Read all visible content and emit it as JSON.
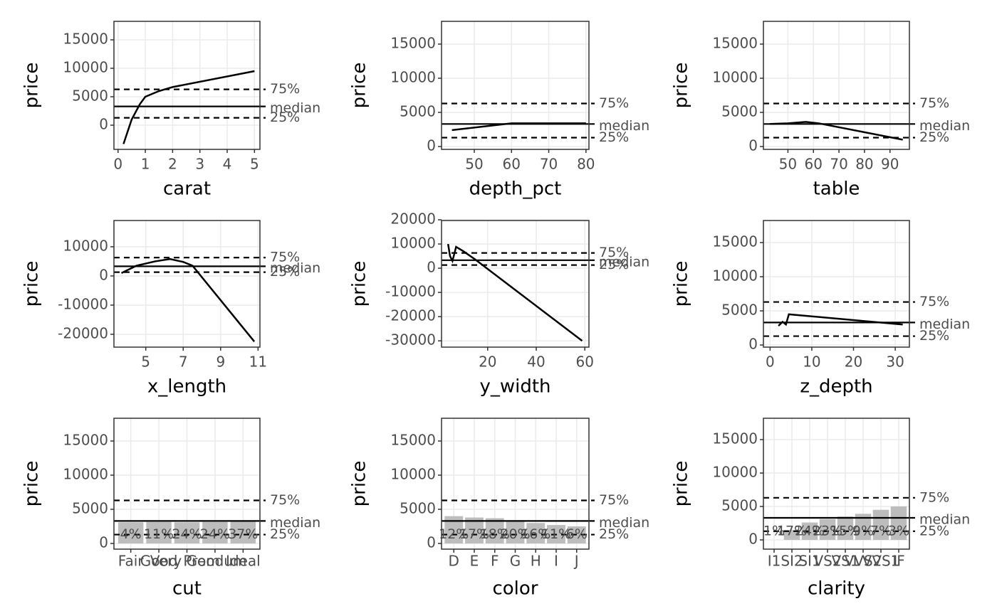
{
  "chart_data": [
    {
      "type": "line",
      "xlabel": "carat",
      "ylabel": "price",
      "color": "#000000",
      "x": [
        0.2,
        0.5,
        0.8,
        1,
        1.5,
        2,
        5
      ],
      "values": [
        -3300,
        1000,
        3700,
        5000,
        6000,
        6700,
        9500
      ],
      "xlim": [
        -0.15,
        5.2
      ],
      "xticks": [
        0,
        1,
        2,
        3,
        4,
        5
      ],
      "ylim": [
        -4250,
        18250
      ],
      "yticks": [
        0,
        5000,
        10000,
        15000
      ],
      "grid": true,
      "reference_lines": [
        {
          "label": "75%",
          "value": 6300
        },
        {
          "label": "median",
          "value": 3300
        },
        {
          "label": "25%",
          "value": 1300
        }
      ]
    },
    {
      "type": "line",
      "xlabel": "depth_pct",
      "ylabel": "price",
      "color": "#000000",
      "x": [
        44,
        60,
        80
      ],
      "values": [
        2400,
        3400,
        3400
      ],
      "xlim": [
        41.2,
        80.8
      ],
      "xticks": [
        50,
        60,
        70,
        80
      ],
      "ylim": [
        -420,
        18330
      ],
      "yticks": [
        0,
        5000,
        10000,
        15000
      ],
      "grid": true,
      "reference_lines": [
        {
          "label": "75%",
          "value": 6300
        },
        {
          "label": "median",
          "value": 3300
        },
        {
          "label": "25%",
          "value": 1300
        }
      ]
    },
    {
      "type": "line",
      "xlabel": "table",
      "ylabel": "price",
      "color": "#000000",
      "x": [
        43,
        50,
        57,
        62,
        95
      ],
      "values": [
        3300,
        3400,
        3600,
        3400,
        1000
      ],
      "xlim": [
        40.4,
        97.6
      ],
      "xticks": [
        50,
        60,
        70,
        80,
        90
      ],
      "ylim": [
        -420,
        18330
      ],
      "yticks": [
        0,
        5000,
        10000,
        15000
      ],
      "grid": true,
      "reference_lines": [
        {
          "label": "75%",
          "value": 6300
        },
        {
          "label": "median",
          "value": 3300
        },
        {
          "label": "25%",
          "value": 1300
        }
      ]
    },
    {
      "type": "line",
      "xlabel": "x_length",
      "ylabel": "price",
      "color": "#000000",
      "x": [
        3.7,
        4.5,
        5.5,
        6.3,
        7,
        7.5,
        10.8
      ],
      "values": [
        1000,
        3500,
        5000,
        5800,
        4800,
        3500,
        -22500
      ],
      "xlim": [
        3.3,
        11.1
      ],
      "xticks": [
        5,
        7,
        9,
        11
      ],
      "ylim": [
        -24400,
        19000
      ],
      "yticks": [
        -20000,
        -10000,
        0,
        10000
      ],
      "grid": true,
      "reference_lines": [
        {
          "label": "75%",
          "value": 6300
        },
        {
          "label": "median",
          "value": 3300
        },
        {
          "label": "25%",
          "value": 1300
        }
      ]
    },
    {
      "type": "line",
      "xlabel": "y_width",
      "ylabel": "price",
      "color": "#000000",
      "x": [
        3.7,
        4.5,
        5.5,
        7,
        10,
        15,
        58.9
      ],
      "values": [
        10000,
        5000,
        3000,
        8800,
        7000,
        3500,
        -30000
      ],
      "xlim": [
        1,
        61.7
      ],
      "xticks": [
        20,
        40,
        60
      ],
      "ylim": [
        -32600,
        19700
      ],
      "yticks": [
        -30000,
        -20000,
        -10000,
        0,
        10000,
        20000
      ],
      "grid": true,
      "reference_lines": [
        {
          "label": "75%",
          "value": 6300
        },
        {
          "label": "median",
          "value": 3300
        },
        {
          "label": "25%",
          "value": 1300
        }
      ]
    },
    {
      "type": "line",
      "xlabel": "z_depth",
      "ylabel": "price",
      "color": "#000000",
      "x": [
        2,
        3,
        3.8,
        4.5,
        31.8
      ],
      "values": [
        2800,
        3400,
        3000,
        4500,
        3000
      ],
      "xlim": [
        -1.6,
        33.4
      ],
      "xticks": [
        0,
        10,
        20,
        30
      ],
      "ylim": [
        -310,
        18230
      ],
      "yticks": [
        0,
        5000,
        10000,
        15000
      ],
      "grid": true,
      "reference_lines": [
        {
          "label": "75%",
          "value": 6300
        },
        {
          "label": "median",
          "value": 3300
        },
        {
          "label": "25%",
          "value": 1300
        }
      ]
    },
    {
      "type": "bar",
      "xlabel": "cut",
      "ylabel": "price",
      "color": "#bdbdbd",
      "categories": [
        "Fair",
        "Good",
        "Very Good",
        "Premium",
        "Ideal"
      ],
      "values": [
        3100,
        3150,
        3100,
        3150,
        3200
      ],
      "labels": [
        "4%",
        "11%",
        "24%",
        "24%",
        "37%"
      ],
      "ylim": [
        -830,
        18330
      ],
      "yticks": [
        0,
        5000,
        10000,
        15000
      ],
      "grid": true,
      "reference_lines": [
        {
          "label": "75%",
          "value": 6300
        },
        {
          "label": "median",
          "value": 3300
        },
        {
          "label": "25%",
          "value": 1300
        }
      ]
    },
    {
      "type": "bar",
      "xlabel": "color",
      "ylabel": "price",
      "color": "#bdbdbd",
      "categories": [
        "D",
        "E",
        "F",
        "G",
        "H",
        "I",
        "J"
      ],
      "values": [
        4000,
        3800,
        3700,
        3400,
        3000,
        2700,
        2500
      ],
      "labels": [
        "12%",
        "17%",
        "18%",
        "20%",
        "16%",
        "11%",
        "6%"
      ],
      "ylim": [
        -830,
        18330
      ],
      "yticks": [
        0,
        5000,
        10000,
        15000
      ],
      "grid": true,
      "reference_lines": [
        {
          "label": "75%",
          "value": 6300
        },
        {
          "label": "median",
          "value": 3300
        },
        {
          "label": "25%",
          "value": 1300
        }
      ]
    },
    {
      "type": "bar",
      "xlabel": "clarity",
      "ylabel": "price",
      "color": "#bdbdbd",
      "categories": [
        "I1",
        "SI2",
        "SI1",
        "VS2",
        "VS1",
        "VVS2",
        "VVS1",
        "IF"
      ],
      "values": [
        0,
        1500,
        2600,
        3100,
        3500,
        3900,
        4500,
        5000
      ],
      "labels": [
        "1%",
        "17%",
        "24%",
        "23%",
        "15%",
        "9%",
        "7%",
        "3%"
      ],
      "ylim": [
        -1380,
        18190
      ],
      "yticks": [
        0,
        5000,
        10000,
        15000
      ],
      "grid": true,
      "reference_lines": [
        {
          "label": "75%",
          "value": 6300
        },
        {
          "label": "median",
          "value": 3300
        },
        {
          "label": "25%",
          "value": 1300
        }
      ]
    }
  ]
}
